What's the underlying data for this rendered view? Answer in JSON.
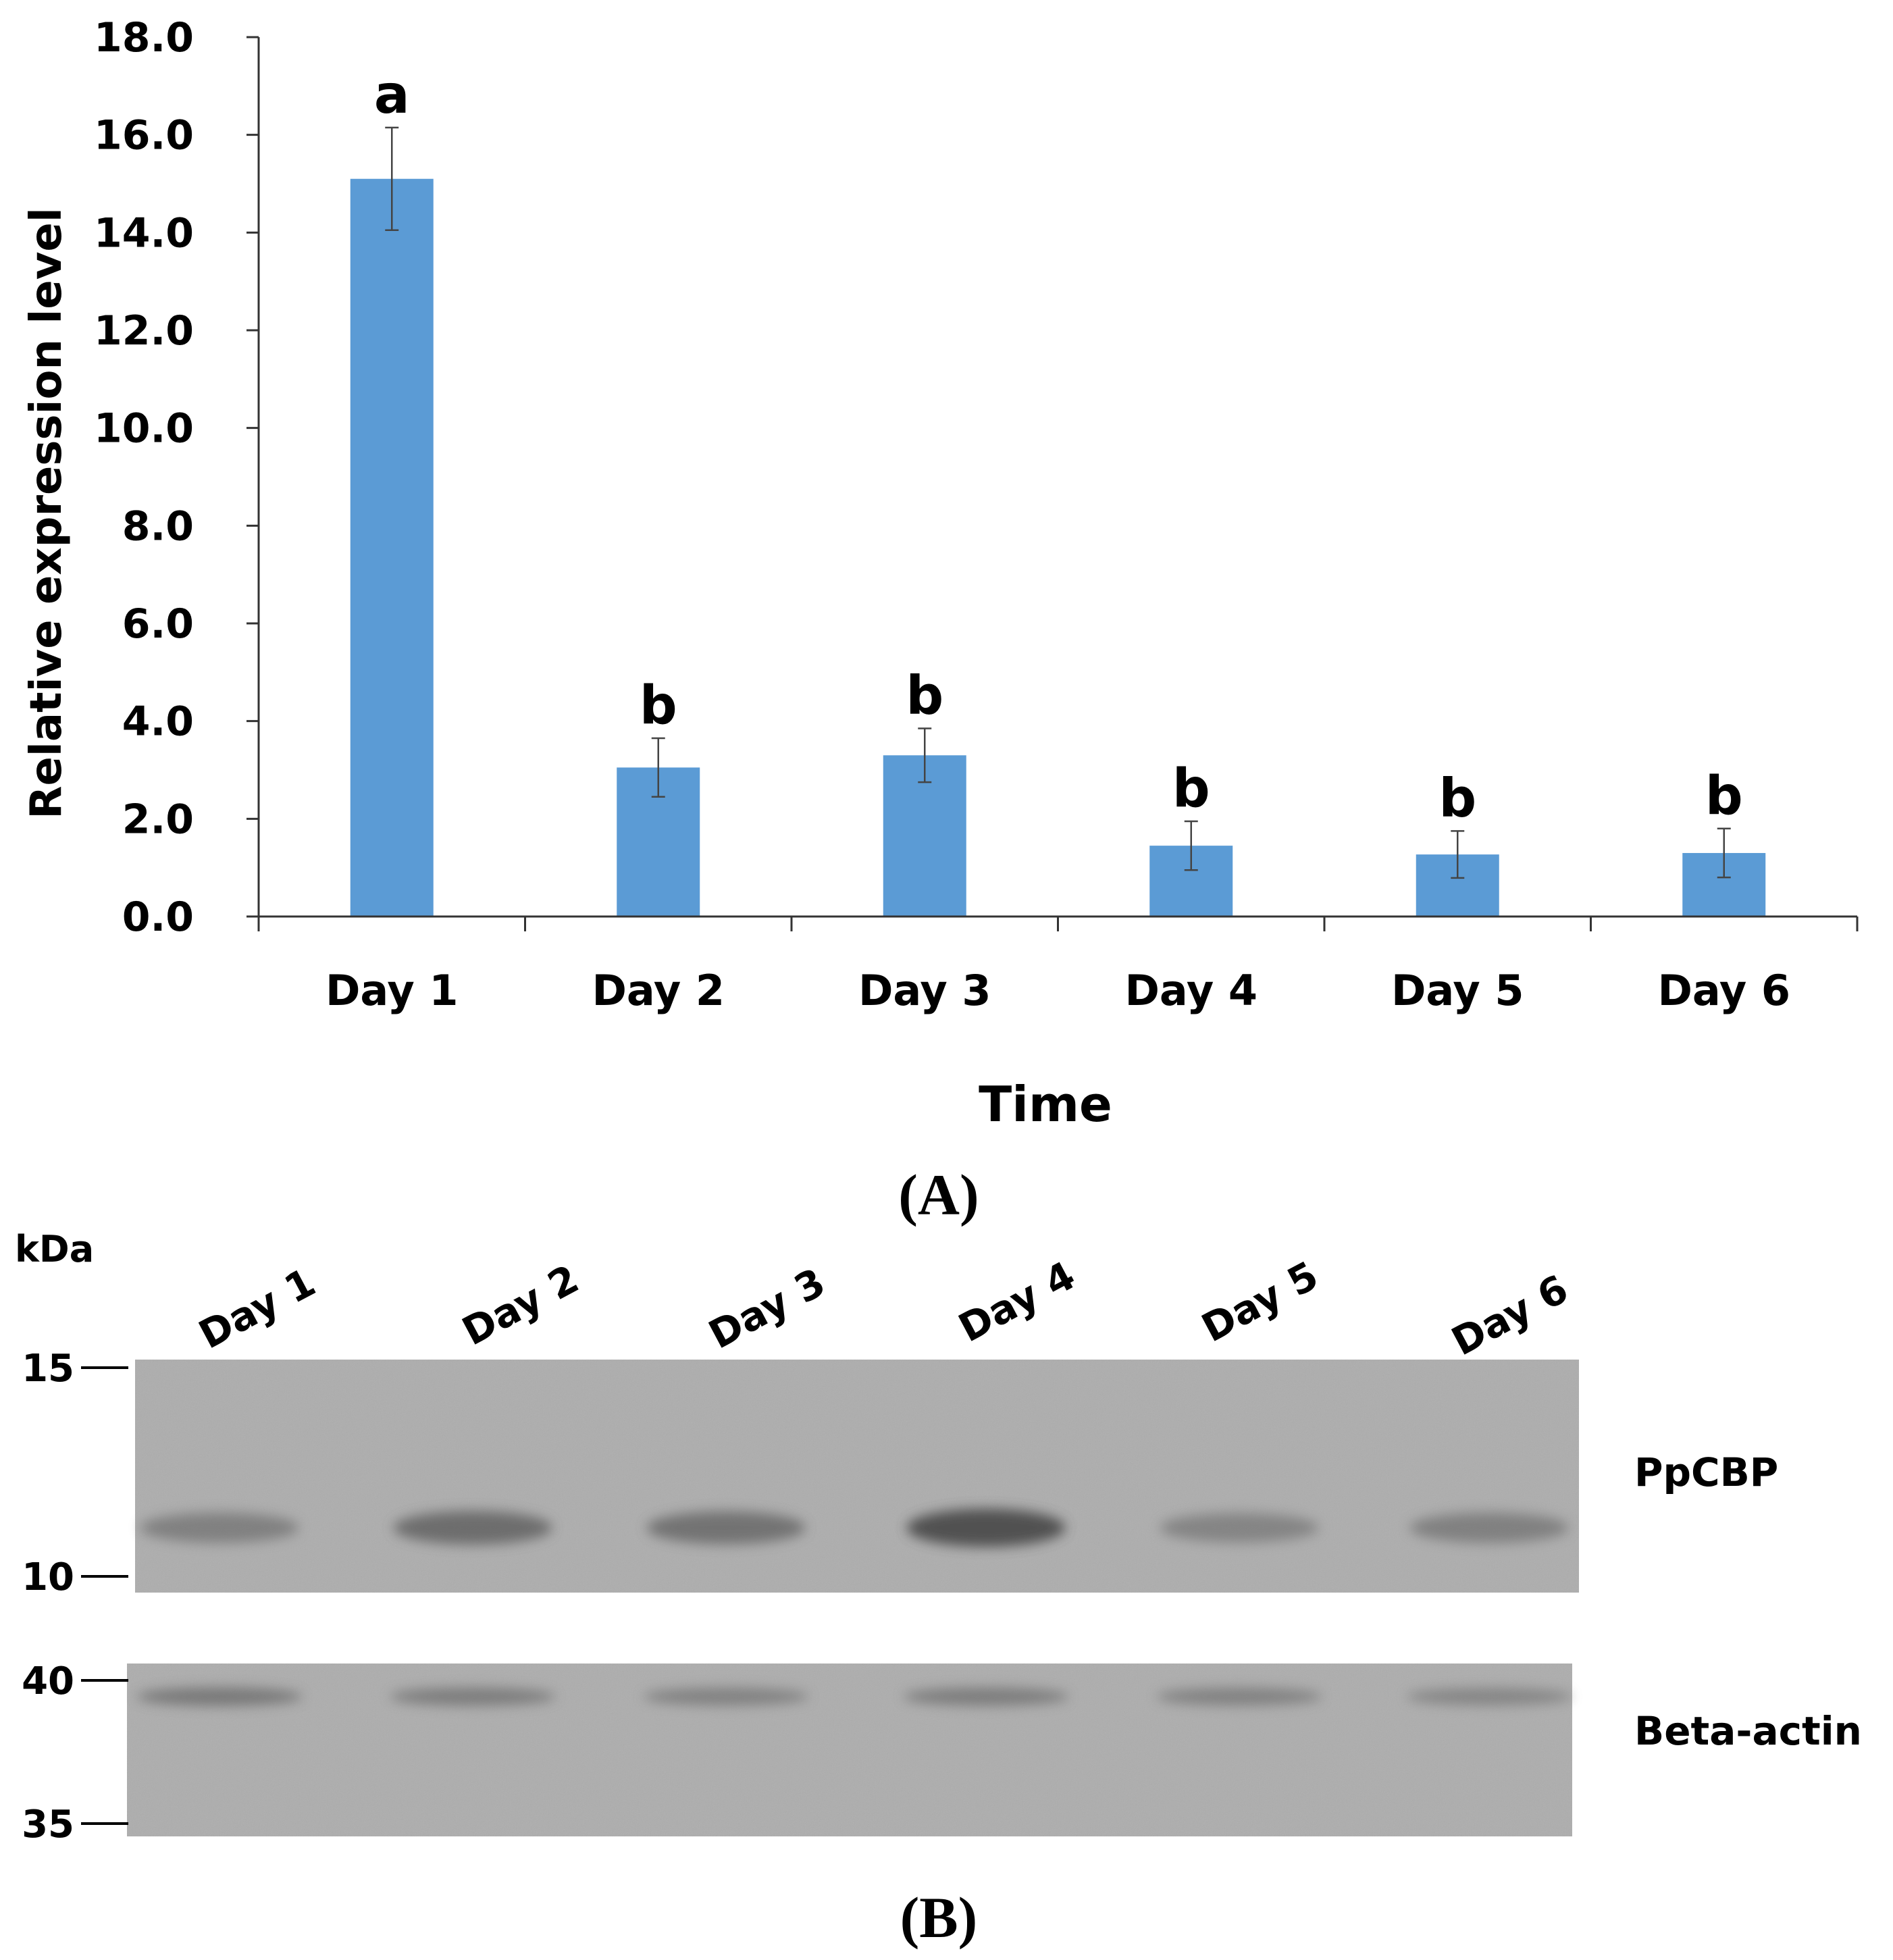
{
  "panel_a_label": "(A)",
  "panel_b_label": "(B)",
  "chart_data": {
    "type": "bar",
    "categories": [
      "Day 1",
      "Day 2",
      "Day 3",
      "Day 4",
      "Day 5",
      "Day 6"
    ],
    "values": [
      15.1,
      3.05,
      3.3,
      1.45,
      1.27,
      1.3
    ],
    "error": [
      1.05,
      0.6,
      0.55,
      0.5,
      0.48,
      0.5
    ],
    "significance": [
      "a",
      "b",
      "b",
      "b",
      "b",
      "b"
    ],
    "xlabel": "Time",
    "ylabel": "Relative expression level",
    "ylim": [
      0,
      18
    ],
    "yticks": [
      "0.0",
      "2.0",
      "4.0",
      "6.0",
      "8.0",
      "10.0",
      "12.0",
      "14.0",
      "16.0",
      "18.0"
    ],
    "grid": false,
    "bar_color": "#5b9bd5"
  },
  "western_blot": {
    "unit_label": "kDa",
    "lanes": [
      "Day 1",
      "Day 2",
      "Day 3",
      "Day 4",
      "Day 5",
      "Day 6"
    ],
    "blots": [
      {
        "label": "PpCBP",
        "markers": [
          "15",
          "10"
        ],
        "band_intensity": [
          0.45,
          0.65,
          0.6,
          0.9,
          0.4,
          0.45
        ]
      },
      {
        "label": "Beta-actin",
        "markers": [
          "40",
          "35"
        ],
        "band_intensity": [
          0.55,
          0.5,
          0.45,
          0.5,
          0.45,
          0.4
        ]
      }
    ],
    "membrane_color": "#adadad"
  }
}
